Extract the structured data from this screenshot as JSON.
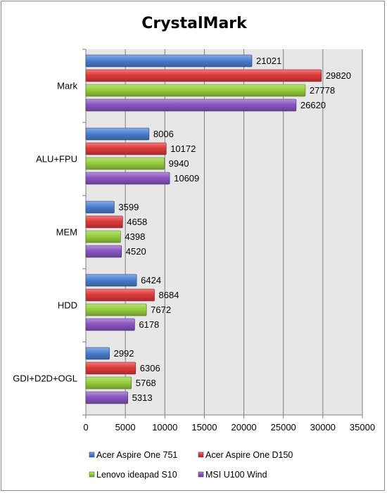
{
  "chart_data": {
    "type": "bar",
    "orientation": "horizontal",
    "title": "CrystalMark",
    "xlabel": "",
    "ylabel": "",
    "xlim": [
      0,
      35000
    ],
    "xticks": [
      0,
      5000,
      10000,
      15000,
      20000,
      25000,
      30000,
      35000
    ],
    "xtick_labels": [
      "0",
      "5000",
      "10000",
      "15000",
      "20000",
      "25000",
      "30000",
      "35000"
    ],
    "grid": "vertical major gridlines",
    "legend_position": "bottom",
    "categories": [
      "Mark",
      "ALU+FPU",
      "MEM",
      "HDD",
      "GDI+D2D+OGL"
    ],
    "series": [
      {
        "name": "Acer Aspire One 751",
        "color": "#4a7fd1",
        "values": [
          21021,
          8006,
          3599,
          6424,
          2992
        ]
      },
      {
        "name": "Acer Aspire One D150",
        "color": "#e0393a",
        "values": [
          29820,
          10172,
          4658,
          8684,
          6306
        ]
      },
      {
        "name": "Lenovo ideapad S10",
        "color": "#96cf3b",
        "values": [
          27778,
          9940,
          4398,
          7672,
          5768
        ]
      },
      {
        "name": "MSI U100 Wind",
        "color": "#8a55c2",
        "values": [
          26620,
          10609,
          4520,
          6178,
          5313
        ]
      }
    ]
  }
}
